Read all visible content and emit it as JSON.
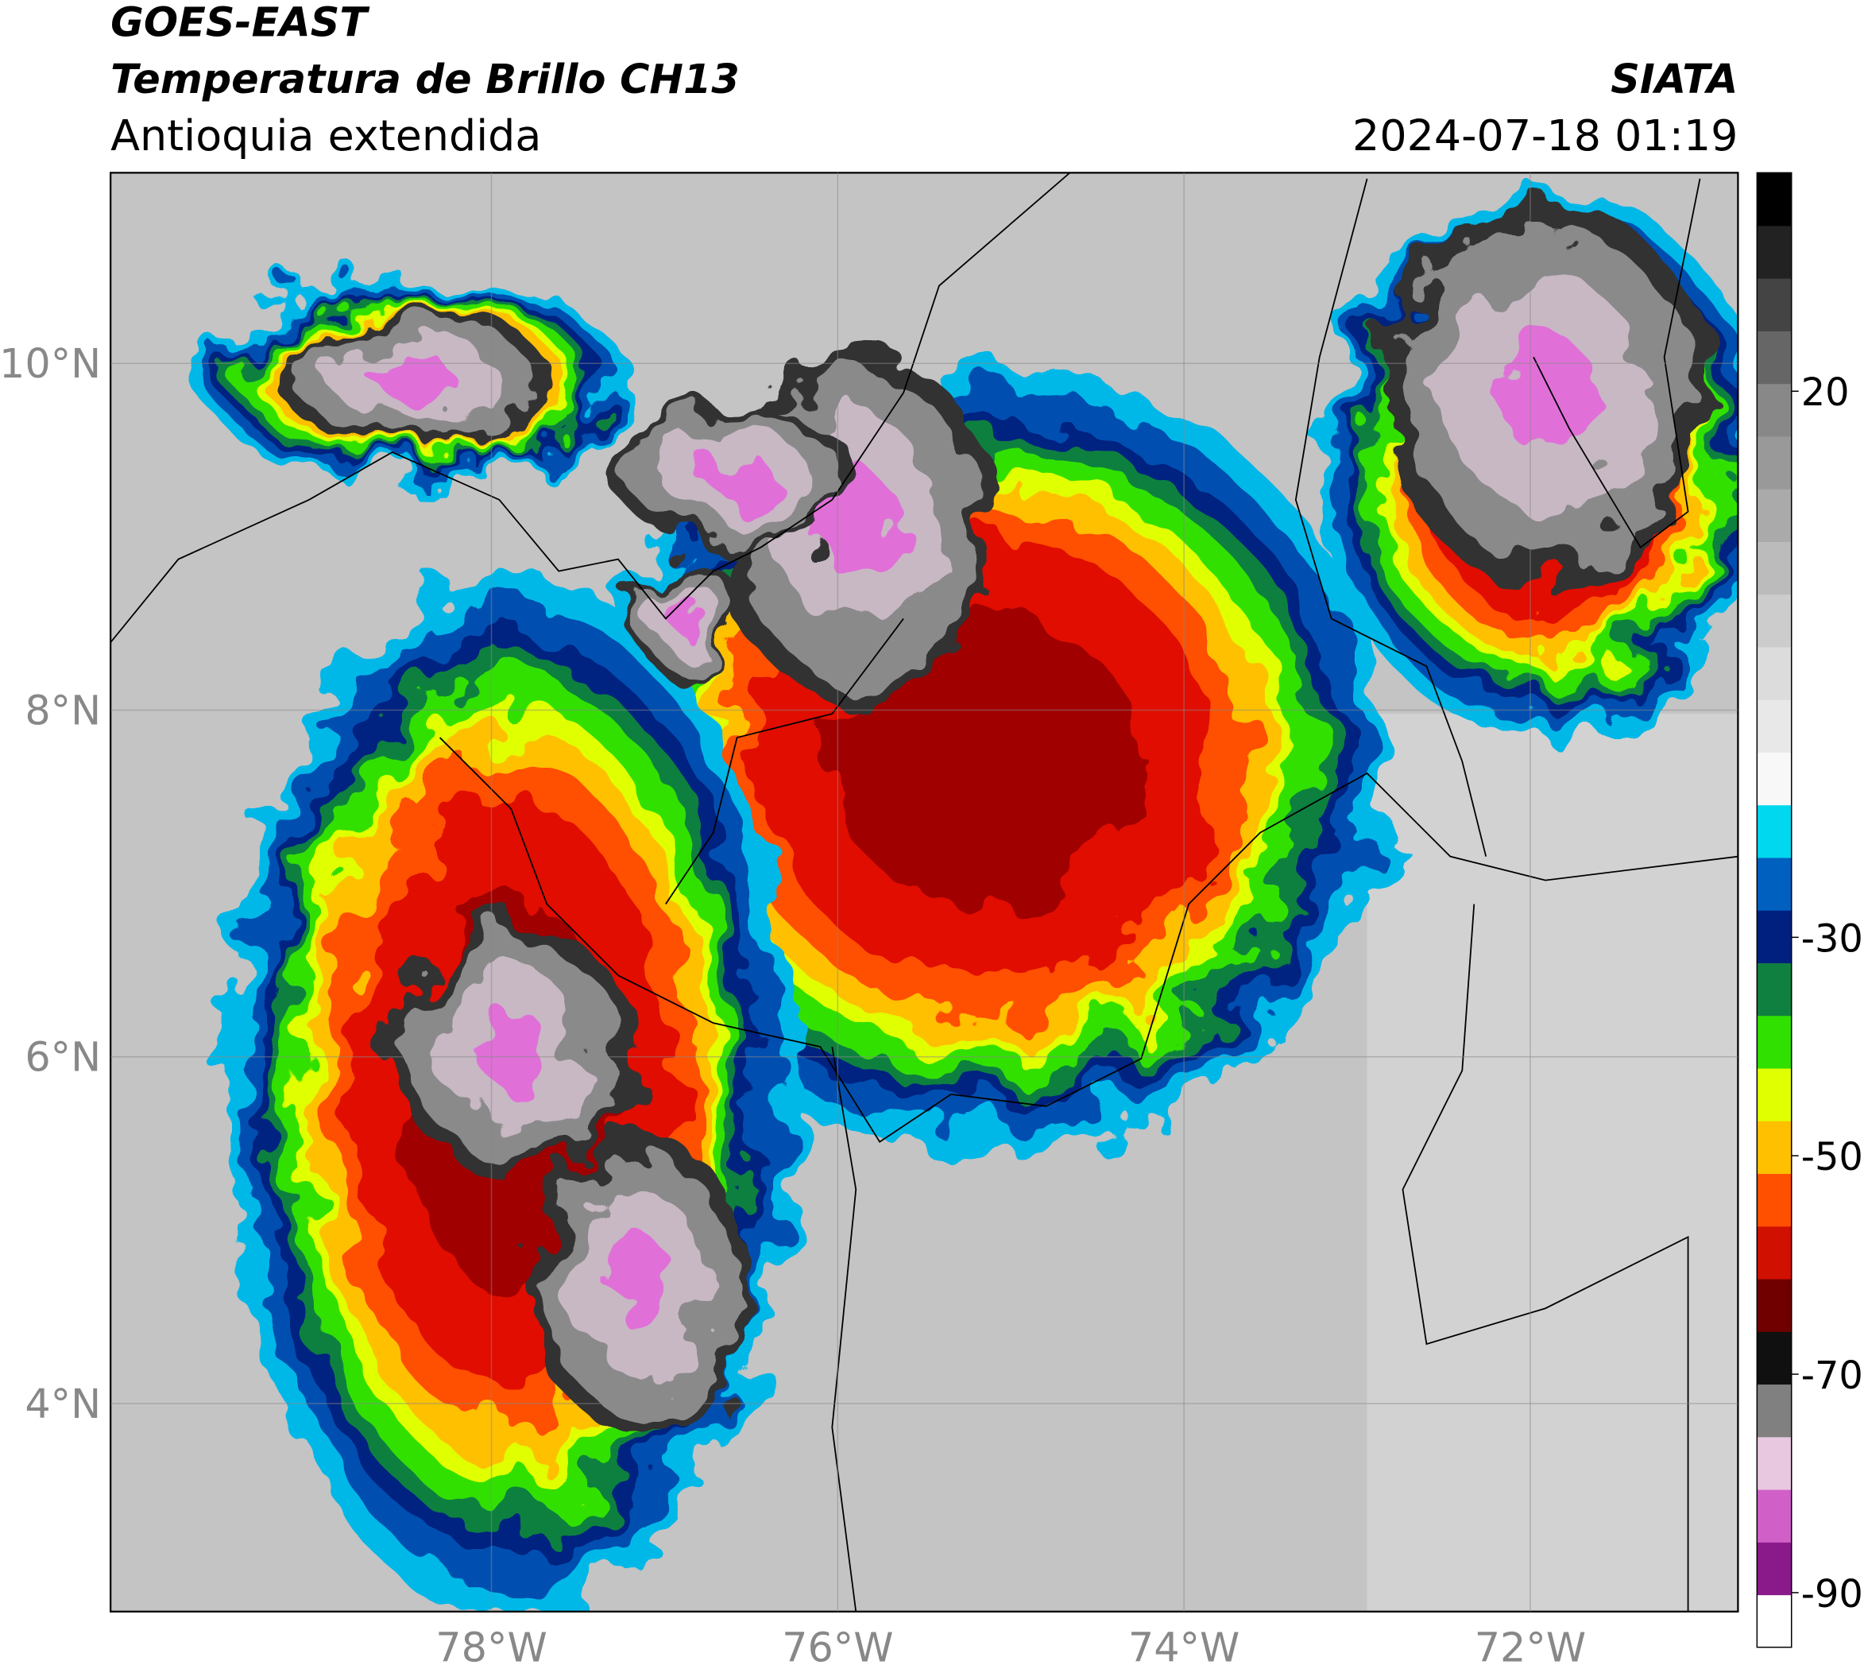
{
  "header": {
    "satellite": "GOES-EAST",
    "product": "Temperatura de Brillo CH13",
    "region": "Antioquia extendida",
    "source": "SIATA",
    "datetime": "2024-07-18 01:19"
  },
  "map": {
    "xlim": [
      -80.2,
      -70.8
    ],
    "ylim": [
      2.8,
      11.1
    ],
    "xticks": [
      {
        "value": -78,
        "label": "78°W"
      },
      {
        "value": -76,
        "label": "76°W"
      },
      {
        "value": -74,
        "label": "74°W"
      },
      {
        "value": -72,
        "label": "72°W"
      }
    ],
    "yticks": [
      {
        "value": 4,
        "label": "4°N"
      },
      {
        "value": 6,
        "label": "6°N"
      },
      {
        "value": 8,
        "label": "8°N"
      },
      {
        "value": 10,
        "label": "10°N"
      }
    ],
    "grid": true
  },
  "colorbar": {
    "lim": [
      -95,
      40
    ],
    "ticks": [
      -90,
      -70,
      -50,
      -30,
      20
    ],
    "colors": [
      "#ffffff",
      "#8a1a8a",
      "#d060c8",
      "#e8c8e0",
      "#808080",
      "#101010",
      "#700000",
      "#d01000",
      "#ff5000",
      "#ffc000",
      "#e0ff00",
      "#30e000",
      "#108040",
      "#002080",
      "#0060c0",
      "#00d8f0",
      "#f8f8f8",
      "#e8e8e8",
      "#dcdcdc",
      "#cccccc",
      "#bbbbbb",
      "#aaaaaa",
      "#999999",
      "#888888",
      "#666666",
      "#444444",
      "#222222",
      "#000000"
    ]
  }
}
